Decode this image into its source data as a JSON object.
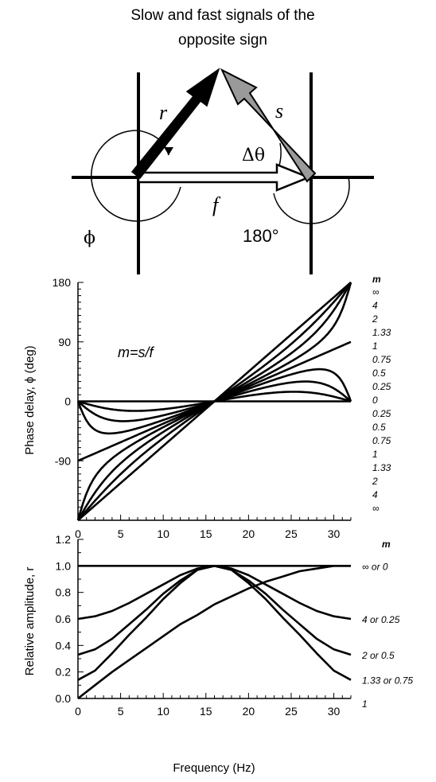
{
  "title_line1": "Slow and fast signals of the",
  "title_line2": "opposite sign",
  "diagram": {
    "r_label": "r",
    "s_label": "s",
    "f_label": "f",
    "dtheta_label": "Δθ",
    "phi_label": "ϕ",
    "angle_label": "180°"
  },
  "chart_data": [
    {
      "type": "line",
      "xlim": [
        0,
        32
      ],
      "ylim": [
        -180,
        180
      ],
      "xticks": [
        "0",
        "5",
        "10",
        "15",
        "20",
        "25",
        "30"
      ],
      "yticks": [
        "180",
        "90",
        "0",
        "-90"
      ],
      "ylabel": "Phase delay, ϕ (deg)",
      "annotation": "m=s/f",
      "legend_title": "m",
      "right_labels": [
        "∞",
        "4",
        "2",
        "1.33",
        "1",
        "0.75",
        "0.5",
        "0.25",
        "0",
        "0.25",
        "0.5",
        "0.75",
        "1",
        "1.33",
        "2",
        "4",
        "∞"
      ],
      "model": "phase of 1 + m·e^{iθ} with θ = π·(x − 16)/16, degrees",
      "x": [
        0,
        2,
        4,
        6,
        8,
        10,
        12,
        14,
        16,
        18,
        20,
        22,
        24,
        26,
        28,
        30,
        32
      ],
      "series": [
        {
          "m": "∞",
          "values": [
            -180,
            -157.5,
            -135,
            -112.5,
            -90,
            -67.5,
            -45,
            -22.5,
            0,
            22.5,
            45,
            67.5,
            90,
            112.5,
            135,
            157.5,
            180
          ]
        },
        {
          "m": "4",
          "values": [
            -180,
            -152.9,
            -127.2,
            -103.8,
            -76,
            -59.6,
            -39.2,
            -19.4,
            0,
            19.4,
            39.2,
            59.6,
            76,
            103.8,
            127.2,
            152.9,
            180
          ]
        },
        {
          "m": "2",
          "values": [
            -180,
            -142.1,
            -111.5,
            -88.7,
            -63.4,
            -49.6,
            -31.6,
            -15.9,
            0,
            15.9,
            31.6,
            49.6,
            63.4,
            88.7,
            111.5,
            142.1,
            180
          ]
        },
        {
          "m": "1.33",
          "values": [
            -180,
            -126.2,
            -95.2,
            -72.7,
            -53.1,
            -39.4,
            -26.2,
            -13.0,
            0,
            13.0,
            26.2,
            39.4,
            53.1,
            72.7,
            95.2,
            126.2,
            180
          ]
        },
        {
          "m": "1",
          "values": [
            -90,
            -78.8,
            -67.5,
            -56.3,
            -45,
            -33.8,
            -22.5,
            -11.3,
            0,
            11.3,
            22.5,
            33.8,
            45,
            56.3,
            67.5,
            78.8,
            90
          ]
        },
        {
          "m": "0.75",
          "values": [
            0,
            -25.1,
            -39.3,
            -40.5,
            -36.9,
            -30.2,
            -21.1,
            -10.6,
            0,
            10.6,
            21.1,
            30.2,
            36.9,
            40.5,
            39.3,
            25.1,
            0
          ]
        },
        {
          "m": "0.5",
          "values": [
            0,
            -12.3,
            -22.2,
            -25.8,
            -26.6,
            -22.6,
            -16.1,
            -8.3,
            0,
            8.3,
            16.1,
            22.6,
            26.6,
            25.8,
            22.2,
            12.3,
            0
          ]
        },
        {
          "m": "0.25",
          "values": [
            0,
            -4.2,
            -8.1,
            -11.0,
            -11.5,
            -11.0,
            -8.8,
            -4.8,
            0,
            4.8,
            8.8,
            11.0,
            11.5,
            11.0,
            8.1,
            4.2,
            0
          ]
        },
        {
          "m": "0",
          "values": [
            0,
            0,
            0,
            0,
            0,
            0,
            0,
            0,
            0,
            0,
            0,
            0,
            0,
            0,
            0,
            0,
            0
          ]
        }
      ]
    },
    {
      "type": "line",
      "xlim": [
        0,
        32
      ],
      "ylim": [
        0,
        1.2
      ],
      "xticks": [
        "0",
        "5",
        "10",
        "15",
        "20",
        "25",
        "30"
      ],
      "yticks": [
        "0.0",
        "0.2",
        "0.4",
        "0.6",
        "0.8",
        "1.0",
        "1.2"
      ],
      "xlabel": "Frequency (Hz)",
      "ylabel": "Relative amplitude, r",
      "legend_title": "m",
      "right_labels": [
        "∞ or 0",
        "4 or 0.25",
        "2 or 0.5",
        "1.33 or 0.75",
        "1"
      ],
      "x": [
        0,
        2,
        4,
        6,
        8,
        10,
        12,
        14,
        16,
        18,
        20,
        22,
        24,
        26,
        28,
        30,
        32
      ],
      "series": [
        {
          "m": "∞ or 0",
          "values": [
            1,
            1,
            1,
            1,
            1,
            1,
            1,
            1,
            1,
            1,
            1,
            1,
            1,
            1,
            1,
            1,
            1
          ]
        },
        {
          "m": "4 or 0.25",
          "values": [
            0.6,
            0.62,
            0.66,
            0.72,
            0.79,
            0.86,
            0.93,
            0.98,
            1,
            0.98,
            0.93,
            0.86,
            0.79,
            0.72,
            0.66,
            0.62,
            0.6
          ]
        },
        {
          "m": "2 or 0.5",
          "values": [
            0.33,
            0.37,
            0.45,
            0.56,
            0.67,
            0.79,
            0.89,
            0.97,
            1,
            0.97,
            0.89,
            0.79,
            0.67,
            0.56,
            0.45,
            0.37,
            0.33
          ]
        },
        {
          "m": "1.33 or 0.75",
          "values": [
            0.14,
            0.21,
            0.34,
            0.48,
            0.61,
            0.75,
            0.87,
            0.97,
            1,
            0.97,
            0.87,
            0.75,
            0.61,
            0.48,
            0.34,
            0.21,
            0.14
          ]
        },
        {
          "m": "1",
          "values": [
            0,
            0.1,
            0.2,
            0.29,
            0.38,
            0.47,
            0.56,
            0.63,
            0.71,
            0.77,
            0.83,
            0.88,
            0.92,
            0.96,
            0.98,
            1.0,
            1
          ]
        }
      ]
    }
  ],
  "colors": {
    "line": "#000000",
    "s_arrow": "#9a9a9a",
    "background": "#ffffff"
  }
}
